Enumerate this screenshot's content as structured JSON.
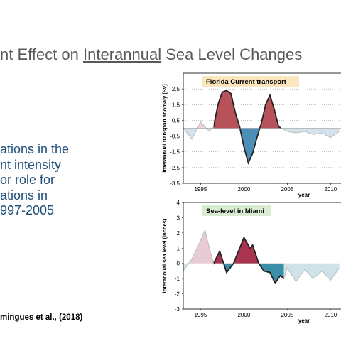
{
  "slide": {
    "title": {
      "before": "nt Effect on ",
      "underlined": "Interannual",
      "after": " Sea Level Changes"
    },
    "body_lines": [
      "ations in the",
      "nt intensity",
      "or role for",
      "ations in",
      "997-2005"
    ],
    "citation": "mingues et al., (2018)"
  },
  "chart_data": [
    {
      "type": "area",
      "title": "Florida Current transport",
      "title_color": "#fbe6bf",
      "y_label": "interannual transport anomaly [Sv]",
      "x_label": "year",
      "x": [
        1993,
        1994,
        1995,
        1996,
        1996.5,
        1997,
        1997.5,
        1998,
        1998.5,
        1999,
        1999.5,
        2000,
        2000.5,
        2001,
        2001.5,
        2002,
        2002.5,
        2003,
        2003.5,
        2004,
        2005,
        2006,
        2007,
        2008,
        2009,
        2010,
        2011
      ],
      "values": [
        0,
        -0.7,
        0.4,
        -0.2,
        0.1,
        1.5,
        2.3,
        2.4,
        2.2,
        1.0,
        0.1,
        -1.2,
        -2.2,
        -1.6,
        -0.6,
        0.3,
        1.5,
        2.1,
        1.2,
        0.1,
        -0.2,
        -0.3,
        -0.2,
        -0.4,
        -0.3,
        -0.6,
        -0.2
      ],
      "positive_color": "#b8525a",
      "negative_color": "#4b8fb8",
      "highlight_range": [
        1996.5,
        2004.3
      ],
      "xlim": [
        1993,
        2011.2
      ],
      "ylim": [
        -3.5,
        3.5
      ],
      "xticks": [
        1995,
        2000,
        2005,
        2010
      ],
      "yticks": [
        2.5,
        1.5,
        0.5,
        -0.5,
        -1.5,
        -2.5,
        -3.5
      ],
      "grid": true
    },
    {
      "type": "area",
      "title": "Sea-level in Miami",
      "title_color": "#d7ecd0",
      "y_label": "interannual sea level (inches)",
      "x_label": "year",
      "x": [
        1993,
        1994,
        1995,
        1995.5,
        1996,
        1996.5,
        1997.2,
        1998,
        1998.8,
        2000,
        2000.7,
        2001,
        2001.7,
        2002.3,
        2003,
        2003.6,
        2004.2,
        2004.6,
        2005,
        2006,
        2007,
        2008,
        2009,
        2010,
        2011
      ],
      "values": [
        -0.5,
        0.3,
        1.5,
        2.2,
        1.0,
        0,
        0.8,
        -0.6,
        0,
        1.7,
        1.0,
        1.2,
        0,
        -0.5,
        -0.6,
        -1.3,
        -0.8,
        -1.0,
        -0.3,
        -1.2,
        -0.4,
        -1.0,
        -0.5,
        -1.1,
        -0.3
      ],
      "positive_color": "#a8344f",
      "negative_color": "#3a8fa8",
      "highlight_range": [
        1996.5,
        2004.6
      ],
      "xlim": [
        1993,
        2011.2
      ],
      "ylim": [
        -3,
        4
      ],
      "xticks": [
        1995,
        2000,
        2005,
        2010
      ],
      "yticks": [
        4,
        3,
        2,
        1,
        0,
        -1,
        -2,
        -3
      ],
      "grid": false
    }
  ]
}
